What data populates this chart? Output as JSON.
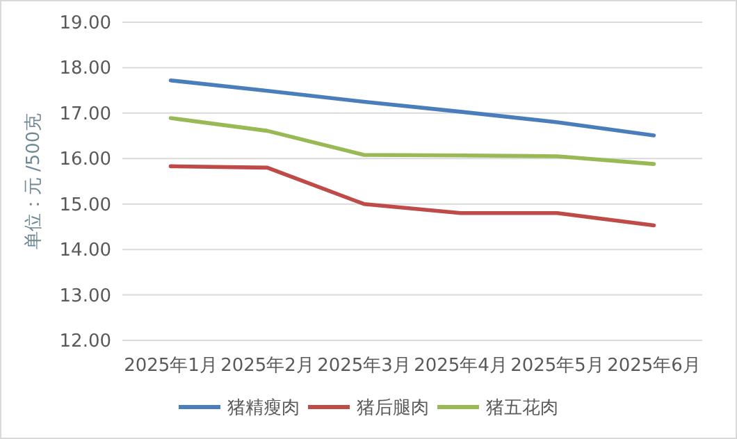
{
  "chart_data": {
    "type": "line",
    "ylabel": "单位：元 /500克",
    "categories": [
      "2025年1月",
      "2025年2月",
      "2025年3月",
      "2025年4月",
      "2025年5月",
      "2025年6月"
    ],
    "series": [
      {
        "name": "猪精瘦肉",
        "color": "#4a7ebb",
        "values": [
          17.72,
          17.49,
          17.25,
          17.03,
          16.8,
          16.51
        ]
      },
      {
        "name": "猪后腿肉",
        "color": "#be4b48",
        "values": [
          15.83,
          15.8,
          15.0,
          14.8,
          14.8,
          14.53
        ]
      },
      {
        "name": "猪五花肉",
        "color": "#98b954",
        "values": [
          16.89,
          16.61,
          16.08,
          16.07,
          16.05,
          15.88
        ]
      }
    ],
    "ylim": [
      12,
      19
    ],
    "yticks": [
      {
        "value": 12,
        "label": "12.00"
      },
      {
        "value": 13,
        "label": "13.00"
      },
      {
        "value": 14,
        "label": "14.00"
      },
      {
        "value": 15,
        "label": "15.00"
      },
      {
        "value": 16,
        "label": "16.00"
      },
      {
        "value": 17,
        "label": "17.00"
      },
      {
        "value": 18,
        "label": "18.00"
      },
      {
        "value": 19,
        "label": "19.00"
      }
    ],
    "grid": "y",
    "legend": "bottom",
    "marker": "none",
    "line_style": "solid"
  }
}
